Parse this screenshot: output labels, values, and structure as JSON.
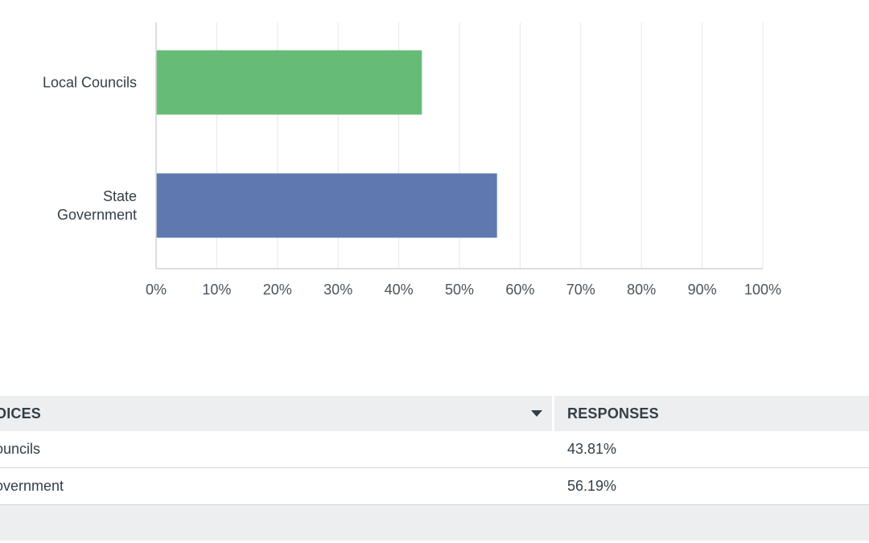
{
  "chart_data": {
    "type": "bar",
    "orientation": "horizontal",
    "categories": [
      "Local Councils",
      "State Government"
    ],
    "category_label_lines": [
      [
        "Local Councils"
      ],
      [
        "State",
        "Government"
      ]
    ],
    "values": [
      43.81,
      56.19
    ],
    "colors": [
      "#66bb77",
      "#6078b0"
    ],
    "xlim": [
      0,
      100
    ],
    "xticks": [
      "0%",
      "10%",
      "20%",
      "30%",
      "40%",
      "50%",
      "60%",
      "70%",
      "80%",
      "90%",
      "100%"
    ],
    "grid": true,
    "title": "",
    "xlabel": "",
    "ylabel": ""
  },
  "table": {
    "headers": {
      "choice": "OICES",
      "responses": "RESPONSES"
    },
    "rows": [
      {
        "choice": "ouncils",
        "response": "43.81%"
      },
      {
        "choice": "overnment",
        "response": "56.19%"
      }
    ]
  }
}
